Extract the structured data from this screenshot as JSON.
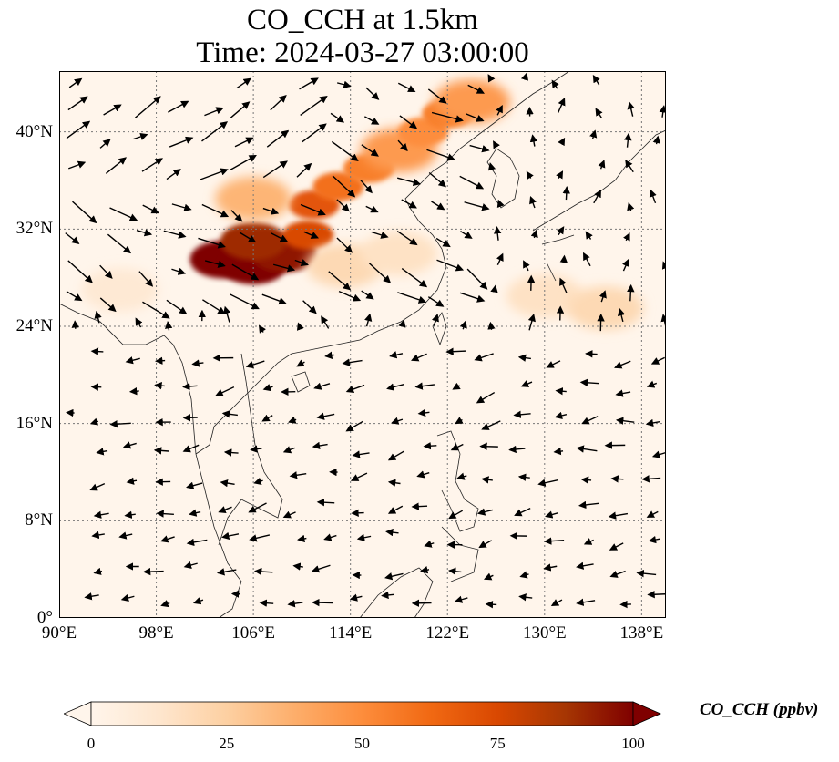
{
  "title": {
    "line1": "CO_CCH at 1.5km",
    "line2": "Time: 2024-03-27 03:00:00"
  },
  "map": {
    "lon_range": [
      90,
      140
    ],
    "lat_range": [
      0,
      45
    ],
    "x_ticks": [
      {
        "lon": 90,
        "label": "90°E"
      },
      {
        "lon": 98,
        "label": "98°E"
      },
      {
        "lon": 106,
        "label": "106°E"
      },
      {
        "lon": 114,
        "label": "114°E"
      },
      {
        "lon": 122,
        "label": "122°E"
      },
      {
        "lon": 130,
        "label": "130°E"
      },
      {
        "lon": 138,
        "label": "138°E"
      }
    ],
    "y_ticks": [
      {
        "lat": 0,
        "label": "0°"
      },
      {
        "lat": 8,
        "label": "8°N"
      },
      {
        "lat": 16,
        "label": "16°N"
      },
      {
        "lat": 24,
        "label": "24°N"
      },
      {
        "lat": 32,
        "label": "32°N"
      },
      {
        "lat": 40,
        "label": "40°N"
      }
    ],
    "gridlines": true,
    "background_color": "#fff5eb",
    "plume": [
      {
        "lon": 103.5,
        "lat": 29.5,
        "level": 100
      },
      {
        "lon": 106.0,
        "lat": 29.0,
        "level": 100
      },
      {
        "lon": 108.5,
        "lat": 30.0,
        "level": 95
      },
      {
        "lon": 106.0,
        "lat": 31.0,
        "level": 90
      },
      {
        "lon": 110.5,
        "lat": 31.5,
        "level": 75
      },
      {
        "lon": 111.0,
        "lat": 34.0,
        "level": 70
      },
      {
        "lon": 113.0,
        "lat": 35.5,
        "level": 60
      },
      {
        "lon": 115.5,
        "lat": 37.0,
        "level": 55
      },
      {
        "lon": 118.0,
        "lat": 38.5,
        "level": 45
      },
      {
        "lon": 120.0,
        "lat": 40.0,
        "level": 50
      },
      {
        "lon": 122.0,
        "lat": 41.5,
        "level": 55
      },
      {
        "lon": 124.0,
        "lat": 42.5,
        "level": 45
      },
      {
        "lon": 106.0,
        "lat": 34.5,
        "level": 35
      },
      {
        "lon": 113.5,
        "lat": 29.0,
        "level": 20
      },
      {
        "lon": 118.0,
        "lat": 30.0,
        "level": 15
      },
      {
        "lon": 130.0,
        "lat": 26.5,
        "level": 15
      },
      {
        "lon": 135.0,
        "lat": 25.5,
        "level": 20
      },
      {
        "lon": 95.0,
        "lat": 27.0,
        "level": 10
      }
    ]
  },
  "colorbar": {
    "min": 0,
    "max": 100,
    "ticks": [
      {
        "value": 0,
        "label": "0"
      },
      {
        "value": 25,
        "label": "25"
      },
      {
        "value": 50,
        "label": "50"
      },
      {
        "value": 75,
        "label": "75"
      },
      {
        "value": 100,
        "label": "100"
      }
    ],
    "colormap_stops": [
      "#fff5eb",
      "#fee6ce",
      "#fdd0a2",
      "#fdae6b",
      "#fd8d3c",
      "#f16913",
      "#d94801",
      "#a63603",
      "#7f0000"
    ],
    "label": "CO_CCH (ppbv)"
  }
}
